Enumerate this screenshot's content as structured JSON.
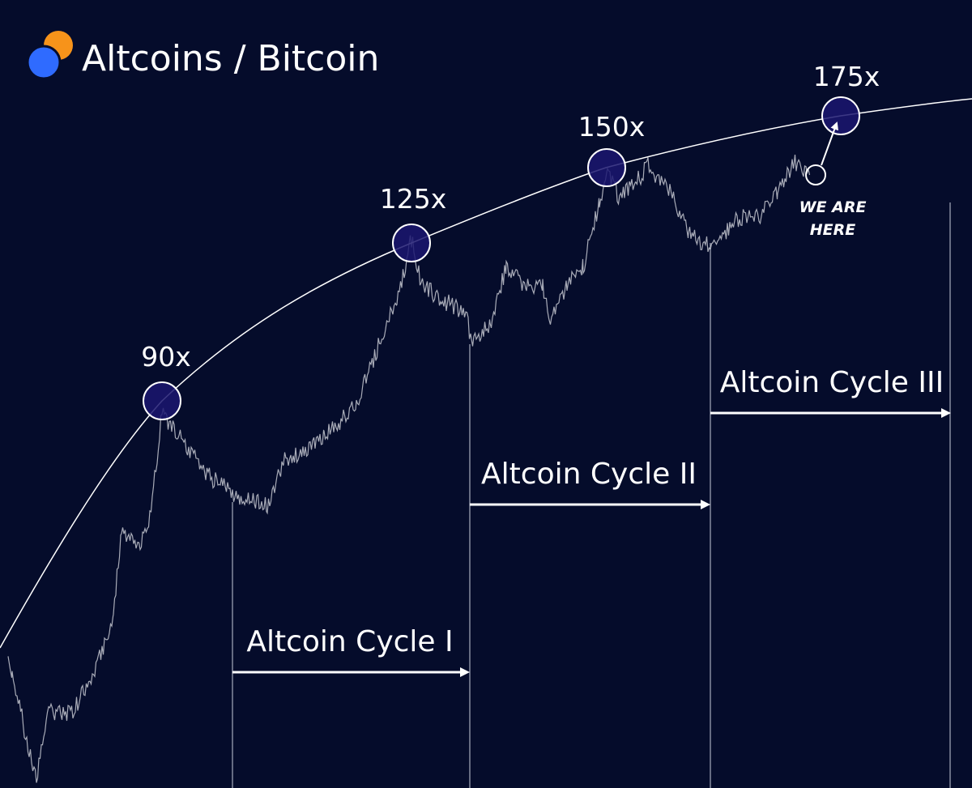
{
  "header": {
    "title": "Altcoins / Bitcoin"
  },
  "peaks": [
    {
      "label": "90x"
    },
    {
      "label": "125x"
    },
    {
      "label": "150x"
    },
    {
      "label": "175x"
    }
  ],
  "cycles": [
    {
      "label": "Altcoin Cycle I"
    },
    {
      "label": "Altcoin Cycle II"
    },
    {
      "label": "Altcoin Cycle III"
    }
  ],
  "annotation": {
    "lines": [
      "WE ARE",
      "HERE"
    ]
  }
}
